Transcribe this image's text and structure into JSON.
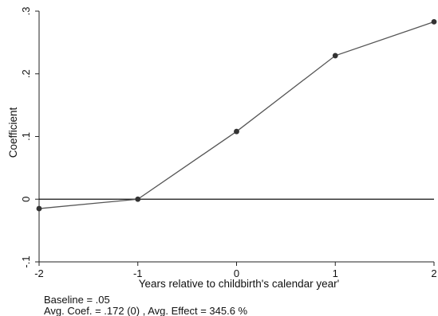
{
  "chart_data": {
    "type": "line",
    "title": "",
    "xlabel": "Years relative to childbirth's calendar year'",
    "ylabel": "Coefficient",
    "x": [
      -2,
      -1,
      0,
      1,
      2
    ],
    "series": [
      {
        "values": [
          -0.015,
          0.0,
          0.108,
          0.229,
          0.283
        ]
      }
    ],
    "xlim": [
      -2,
      2
    ],
    "ylim": [
      -0.1,
      0.3
    ],
    "xticks": [
      -2,
      -1,
      0,
      1,
      2
    ],
    "xtick_labels": [
      "-2",
      "-1",
      "0",
      "1",
      "2"
    ],
    "yticks": [
      -0.1,
      0,
      0.1,
      0.2,
      0.3
    ],
    "ytick_labels": [
      "-.1",
      "0",
      ".1",
      ".2",
      ".3"
    ],
    "reference_line_y": 0,
    "grid": false,
    "colors": {
      "line": "#555555",
      "marker": "#333333",
      "reference": "#111111",
      "axis": "#222222"
    },
    "notes": [
      "Baseline = .05",
      "Avg. Coef. = .172 (0) , Avg. Effect = 345.6 %"
    ]
  }
}
